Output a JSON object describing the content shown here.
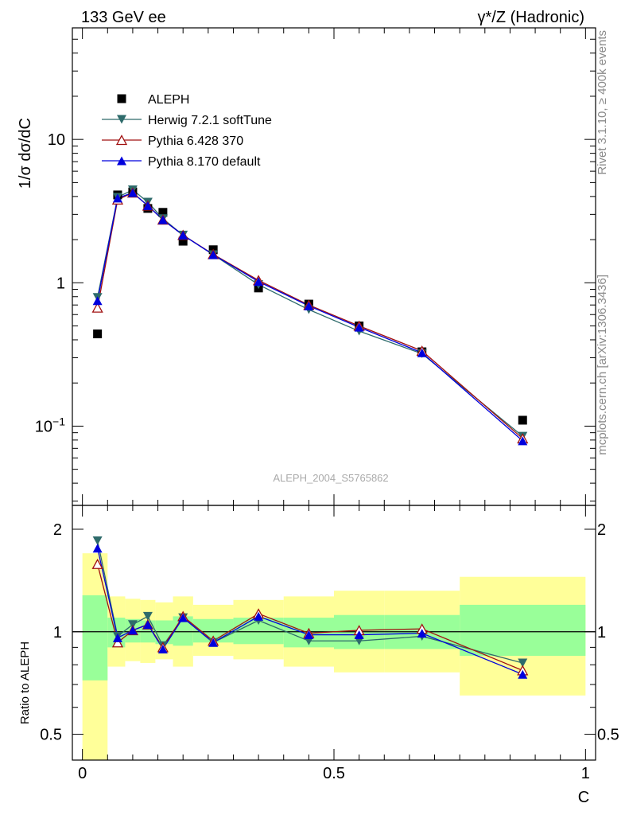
{
  "header": {
    "left": "133 GeV ee",
    "right": "γ*/Z (Hadronic)"
  },
  "side": {
    "rivet": "Rivet 3.1.10, ≥ 400k events",
    "mcplots": "mcplots.cern.ch [arXiv:1306.3436]"
  },
  "colors": {
    "data": "#000000",
    "herwig": "#2e6b6b",
    "pythia6": "#a01010",
    "pythia8": "#0000dd",
    "band_inner": "#99ff99",
    "band_outer": "#ffff99"
  },
  "chart_data": [
    {
      "type": "line",
      "panel": "main",
      "ylabel": "1/σ  dσ/dC",
      "yscale": "log",
      "ylim": [
        0.028,
        60
      ],
      "xlim": [
        -0.02,
        1.02
      ],
      "yticks": [
        {
          "value": 0.1,
          "base": "10",
          "exp": "−1"
        },
        {
          "value": 1,
          "label": "1"
        },
        {
          "value": 10,
          "label": "10"
        }
      ],
      "watermark": "ALEPH_2004_S5765862",
      "legend": [
        "ALEPH",
        "Herwig 7.2.1 softTune",
        "Pythia 6.428 370",
        "Pythia 8.170 default"
      ],
      "series": [
        {
          "name": "ALEPH",
          "marker": "square",
          "x": [
            0.03,
            0.07,
            0.1,
            0.13,
            0.16,
            0.2,
            0.26,
            0.35,
            0.45,
            0.55,
            0.675,
            0.875
          ],
          "y": [
            0.44,
            4.1,
            4.3,
            3.3,
            3.1,
            1.95,
            1.7,
            0.92,
            0.71,
            0.5,
            0.33,
            0.11
          ]
        },
        {
          "name": "Herwig 7.2.1 softTune",
          "marker": "triangle-down",
          "x": [
            0.03,
            0.07,
            0.1,
            0.13,
            0.16,
            0.2,
            0.26,
            0.35,
            0.45,
            0.55,
            0.675,
            0.875
          ],
          "y": [
            0.79,
            3.95,
            4.45,
            3.65,
            2.8,
            2.15,
            1.57,
            0.97,
            0.65,
            0.46,
            0.32,
            0.085
          ]
        },
        {
          "name": "Pythia 6.428 370",
          "marker": "triangle-up-open",
          "x": [
            0.03,
            0.07,
            0.1,
            0.13,
            0.16,
            0.2,
            0.26,
            0.35,
            0.45,
            0.55,
            0.675,
            0.875
          ],
          "y": [
            0.67,
            3.8,
            4.25,
            3.45,
            2.75,
            2.15,
            1.58,
            1.04,
            0.7,
            0.5,
            0.335,
            0.082
          ]
        },
        {
          "name": "Pythia 8.170 default",
          "marker": "triangle-up",
          "x": [
            0.03,
            0.07,
            0.1,
            0.13,
            0.16,
            0.2,
            0.26,
            0.35,
            0.45,
            0.55,
            0.675,
            0.875
          ],
          "y": [
            0.75,
            3.9,
            4.25,
            3.45,
            2.75,
            2.15,
            1.57,
            1.02,
            0.69,
            0.49,
            0.325,
            0.079
          ]
        }
      ]
    },
    {
      "type": "line",
      "panel": "ratio",
      "ylabel": "Ratio to ALEPH",
      "xlabel": "C",
      "yscale": "log",
      "ylim": [
        0.42,
        2.35
      ],
      "xlim": [
        -0.02,
        1.02
      ],
      "yticks": [
        0.5,
        1,
        2
      ],
      "xticks": [
        0,
        0.5,
        1
      ],
      "reference": 1,
      "bands": {
        "edges": [
          0.0,
          0.05,
          0.085,
          0.115,
          0.145,
          0.18,
          0.22,
          0.3,
          0.4,
          0.5,
          0.6,
          0.75,
          1.0
        ],
        "inner_low": [
          0.72,
          0.9,
          0.93,
          0.93,
          0.92,
          0.91,
          0.93,
          0.92,
          0.9,
          0.89,
          0.89,
          0.85
        ],
        "inner_high": [
          1.28,
          1.1,
          1.09,
          1.08,
          1.08,
          1.11,
          1.09,
          1.1,
          1.1,
          1.12,
          1.12,
          1.2
        ],
        "outer_low": [
          0.35,
          0.79,
          0.82,
          0.81,
          0.83,
          0.79,
          0.85,
          0.83,
          0.79,
          0.76,
          0.76,
          0.65
        ],
        "outer_high": [
          1.7,
          1.27,
          1.25,
          1.24,
          1.22,
          1.27,
          1.2,
          1.24,
          1.27,
          1.32,
          1.32,
          1.45
        ]
      },
      "series": [
        {
          "name": "Herwig 7.2.1 softTune",
          "x": [
            0.03,
            0.07,
            0.1,
            0.13,
            0.16,
            0.2,
            0.26,
            0.35,
            0.45,
            0.55,
            0.675,
            0.875
          ],
          "y": [
            1.85,
            0.97,
            1.05,
            1.11,
            0.91,
            1.1,
            0.93,
            1.08,
            0.94,
            0.94,
            0.97,
            0.81
          ]
        },
        {
          "name": "Pythia 6.428 370",
          "x": [
            0.03,
            0.07,
            0.1,
            0.13,
            0.16,
            0.2,
            0.26,
            0.35,
            0.45,
            0.55,
            0.675,
            0.875
          ],
          "y": [
            1.58,
            0.93,
            1.01,
            1.05,
            0.9,
            1.11,
            0.94,
            1.13,
            0.99,
            1.01,
            1.02,
            0.77
          ]
        },
        {
          "name": "Pythia 8.170 default",
          "x": [
            0.03,
            0.07,
            0.1,
            0.13,
            0.16,
            0.2,
            0.26,
            0.35,
            0.45,
            0.55,
            0.675,
            0.875
          ],
          "y": [
            1.76,
            0.96,
            1.01,
            1.05,
            0.89,
            1.1,
            0.93,
            1.11,
            0.98,
            0.98,
            0.99,
            0.75
          ]
        }
      ]
    }
  ]
}
